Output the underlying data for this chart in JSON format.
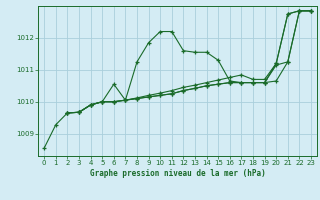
{
  "title": "Graphe pression niveau de la mer (hPa)",
  "bg_color": "#d4ecf4",
  "grid_color": "#aacfdc",
  "line_color": "#1a6b2a",
  "xlim": [
    -0.5,
    23.5
  ],
  "ylim": [
    1008.3,
    1013.0
  ],
  "yticks": [
    1009,
    1010,
    1011
  ],
  "ytick_top": 1012,
  "xticks": [
    0,
    1,
    2,
    3,
    4,
    5,
    6,
    7,
    8,
    9,
    10,
    11,
    12,
    13,
    14,
    15,
    16,
    17,
    18,
    19,
    20,
    21,
    22,
    23
  ],
  "series": [
    [
      1008.55,
      1009.28,
      1009.65,
      1009.67,
      1009.9,
      1010.0,
      1010.55,
      1010.05,
      1011.25,
      1011.85,
      1012.2,
      1012.2,
      1011.6,
      1011.55,
      1011.55,
      1011.3,
      1010.65,
      1010.6,
      1010.6,
      1010.6,
      1011.2,
      1012.75,
      1012.85,
      1012.85
    ],
    [
      null,
      null,
      1009.65,
      1009.67,
      1009.9,
      1010.0,
      1010.0,
      1010.05,
      1010.12,
      1010.2,
      1010.27,
      1010.35,
      1010.45,
      1010.52,
      1010.6,
      1010.68,
      1010.76,
      1010.84,
      1010.7,
      1010.7,
      1011.2,
      1012.75,
      1012.85,
      1012.85
    ],
    [
      null,
      null,
      1009.65,
      1009.67,
      1009.9,
      1010.0,
      1010.0,
      1010.05,
      1010.1,
      1010.15,
      1010.2,
      1010.25,
      1010.35,
      1010.42,
      1010.5,
      1010.55,
      1010.6,
      1010.6,
      1010.6,
      1010.6,
      1011.15,
      1011.25,
      1012.85,
      1012.85
    ],
    [
      null,
      null,
      1009.65,
      1009.67,
      1009.9,
      1010.0,
      1010.0,
      1010.05,
      1010.1,
      1010.15,
      1010.2,
      1010.25,
      1010.35,
      1010.42,
      1010.5,
      1010.55,
      1010.6,
      1010.6,
      1010.6,
      1010.6,
      1010.65,
      1011.25,
      1012.85,
      1012.85
    ]
  ]
}
